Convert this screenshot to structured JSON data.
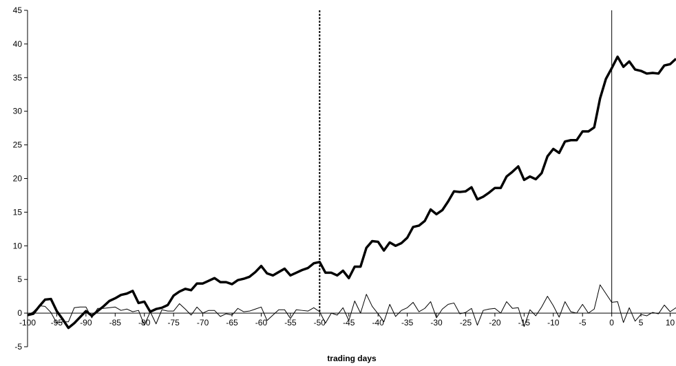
{
  "chart_data": {
    "type": "line",
    "title": "",
    "xlabel": "trading days",
    "ylabel": "",
    "xlim": [
      -100,
      11
    ],
    "ylim": [
      -5,
      45
    ],
    "x_ticks": [
      -100,
      -95,
      -90,
      -85,
      -80,
      -75,
      -70,
      -65,
      -60,
      -55,
      -50,
      -45,
      -40,
      -35,
      -30,
      -25,
      -20,
      -15,
      -10,
      -5,
      0,
      5,
      10
    ],
    "y_ticks": [
      -5,
      0,
      5,
      10,
      15,
      20,
      25,
      30,
      35,
      40,
      45
    ],
    "grid": false,
    "legend": "none",
    "reference_lines": [
      {
        "x": -50,
        "style": "dashed"
      },
      {
        "x": 0,
        "style": "solid"
      }
    ],
    "series": [
      {
        "style": "thick",
        "x": [
          -100,
          -99,
          -98,
          -97,
          -96,
          -95,
          -94,
          -93,
          -92,
          -91,
          -90,
          -89,
          -88,
          -87,
          -86,
          -85,
          -84,
          -83,
          -82,
          -81,
          -80,
          -79,
          -78,
          -77,
          -76,
          -75,
          -74,
          -73,
          -72,
          -71,
          -70,
          -69,
          -68,
          -67,
          -66,
          -65,
          -64,
          -63,
          -62,
          -61,
          -60,
          -59,
          -58,
          -57,
          -56,
          -55,
          -54,
          -53,
          -52,
          -51,
          -50,
          -49,
          -48,
          -47,
          -46,
          -45,
          -44,
          -43,
          -42,
          -41,
          -40,
          -39,
          -38,
          -37,
          -36,
          -35,
          -34,
          -33,
          -32,
          -31,
          -30,
          -29,
          -28,
          -27,
          -26,
          -25,
          -24,
          -23,
          -22,
          -21,
          -20,
          -19,
          -18,
          -17,
          -16,
          -15,
          -14,
          -13,
          -12,
          -11,
          -10,
          -9,
          -8,
          -7,
          -6,
          -5,
          -4,
          -3,
          -2,
          -1,
          0,
          1,
          2,
          3,
          4,
          5,
          6,
          7,
          8,
          9,
          10,
          11
        ],
        "values": [
          -0.3,
          -0.1,
          1.0,
          2.0,
          2.1,
          0.3,
          -0.9,
          -2.2,
          -1.5,
          -0.6,
          0.3,
          -0.4,
          0.3,
          1.0,
          1.8,
          2.2,
          2.7,
          2.9,
          3.3,
          1.5,
          1.7,
          0.2,
          0.6,
          0.8,
          1.2,
          2.6,
          3.2,
          3.6,
          3.4,
          4.4,
          4.4,
          4.8,
          5.2,
          4.6,
          4.6,
          4.3,
          4.9,
          5.1,
          5.4,
          6.1,
          7.0,
          5.9,
          5.6,
          6.1,
          6.6,
          5.6,
          6.0,
          6.4,
          6.7,
          7.4,
          7.6,
          6.0,
          6.0,
          5.6,
          6.3,
          5.2,
          6.9,
          6.9,
          9.7,
          10.7,
          10.6,
          9.3,
          10.5,
          10.0,
          10.4,
          11.2,
          12.8,
          13.0,
          13.7,
          15.4,
          14.7,
          15.3,
          16.6,
          18.1,
          18.0,
          18.1,
          18.7,
          16.9,
          17.3,
          17.9,
          18.6,
          18.6,
          20.3,
          21.0,
          21.8,
          19.8,
          20.3,
          19.9,
          20.8,
          23.3,
          24.4,
          23.8,
          25.5,
          25.7,
          25.7,
          27.0,
          27.0,
          27.6,
          31.9,
          34.8,
          36.4,
          38.1,
          36.6,
          37.4,
          36.2,
          36.0,
          35.6,
          35.7,
          35.6,
          36.8,
          37.0,
          37.8
        ]
      },
      {
        "style": "thin",
        "x": [
          -100,
          -99,
          -98,
          -97,
          -96,
          -95,
          -94,
          -93,
          -92,
          -91,
          -90,
          -89,
          -88,
          -87,
          -86,
          -85,
          -84,
          -83,
          -82,
          -81,
          -80,
          -79,
          -78,
          -77,
          -76,
          -75,
          -74,
          -73,
          -72,
          -71,
          -70,
          -69,
          -68,
          -67,
          -66,
          -65,
          -64,
          -63,
          -62,
          -61,
          -60,
          -59,
          -58,
          -57,
          -56,
          -55,
          -54,
          -53,
          -52,
          -51,
          -50,
          -49,
          -48,
          -47,
          -46,
          -45,
          -44,
          -43,
          -42,
          -41,
          -40,
          -39,
          -38,
          -37,
          -36,
          -35,
          -34,
          -33,
          -32,
          -31,
          -30,
          -29,
          -28,
          -27,
          -26,
          -25,
          -24,
          -23,
          -22,
          -21,
          -20,
          -19,
          -18,
          -17,
          -16,
          -15,
          -14,
          -13,
          -12,
          -11,
          -10,
          -9,
          -8,
          -7,
          -6,
          -5,
          -4,
          -3,
          -2,
          -1,
          0,
          1,
          2,
          3,
          4,
          5,
          6,
          7,
          8,
          9,
          10,
          11
        ],
        "values": [
          -0.3,
          0.2,
          1.1,
          1.0,
          0.1,
          -1.5,
          -1.3,
          -1.3,
          0.8,
          0.9,
          0.9,
          -0.7,
          0.7,
          0.7,
          0.8,
          0.9,
          0.4,
          0.6,
          0.2,
          0.4,
          -1.8,
          0.2,
          -1.6,
          0.5,
          0.3,
          0.3,
          1.4,
          0.6,
          -0.3,
          0.9,
          0.0,
          0.4,
          0.4,
          -0.5,
          -0.1,
          -0.3,
          0.7,
          0.2,
          0.3,
          0.6,
          0.9,
          -1.1,
          -0.3,
          0.5,
          0.5,
          -0.8,
          0.5,
          0.4,
          0.3,
          0.8,
          0.2,
          -1.5,
          0.0,
          -0.3,
          0.8,
          -1.1,
          1.8,
          0.0,
          2.8,
          1.0,
          -0.1,
          -1.3,
          1.3,
          -0.5,
          0.4,
          0.8,
          1.6,
          0.2,
          0.7,
          1.7,
          -0.7,
          0.6,
          1.3,
          1.5,
          -0.1,
          0.1,
          0.7,
          -1.8,
          0.4,
          0.6,
          0.7,
          0.0,
          1.7,
          0.7,
          0.8,
          -2.0,
          0.5,
          -0.4,
          0.9,
          2.5,
          1.1,
          -0.6,
          1.7,
          0.2,
          0.0,
          1.3,
          0.0,
          0.6,
          4.2,
          2.9,
          1.6,
          1.7,
          -1.4,
          0.8,
          -1.2,
          -0.2,
          -0.4,
          0.1,
          -0.1,
          1.2,
          0.2,
          0.8
        ]
      }
    ]
  }
}
